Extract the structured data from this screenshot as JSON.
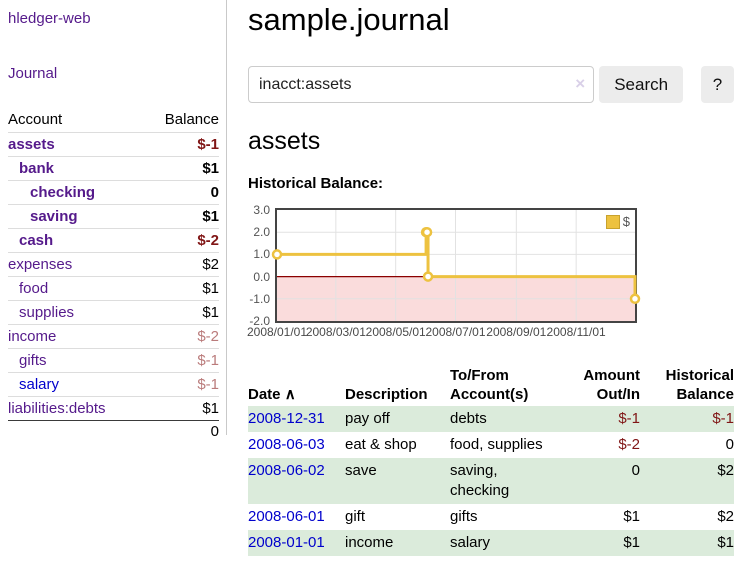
{
  "colors": {
    "link_purple": "#551A8B",
    "link_blue": "#0000CC",
    "neg_strong": "#801515",
    "neg_soft": "#BA7B7B",
    "row_green": "#DBEBDB",
    "chart_line": "#EDC240",
    "chart_negative_region": "#FADCDC",
    "chart_zero_line": "#8B0000",
    "button_bg": "#ECECEC"
  },
  "sidebar": {
    "app_title": "hledger-web",
    "nav": {
      "journal": "Journal"
    },
    "accounts_table": {
      "headers": {
        "account": "Account",
        "balance": "Balance"
      },
      "rows": [
        {
          "name": "assets",
          "depth": 1,
          "bold": true,
          "balance": "$-1",
          "neg": "strong"
        },
        {
          "name": "bank",
          "depth": 2,
          "bold": true,
          "balance": "$1"
        },
        {
          "name": "checking",
          "depth": 3,
          "bold": true,
          "balance": "0"
        },
        {
          "name": "saving",
          "depth": 3,
          "bold": true,
          "balance": "$1"
        },
        {
          "name": "cash",
          "depth": 2,
          "bold": true,
          "balance": "$-2",
          "neg": "strong"
        },
        {
          "name": "expenses",
          "depth": 1,
          "bold": false,
          "balance": "$2"
        },
        {
          "name": "food",
          "depth": 2,
          "bold": false,
          "balance": "$1"
        },
        {
          "name": "supplies",
          "depth": 2,
          "bold": false,
          "balance": "$1"
        },
        {
          "name": "income",
          "depth": 1,
          "bold": false,
          "balance": "$-2",
          "neg": "soft"
        },
        {
          "name": "gifts",
          "depth": 2,
          "bold": false,
          "balance": "$-1",
          "neg": "soft"
        },
        {
          "name": "salary",
          "depth": 2,
          "bold": false,
          "balance": "$-1",
          "neg": "soft",
          "unvisited": true
        },
        {
          "name": "liabilities:debts",
          "depth": 1,
          "bold": false,
          "balance": "$1",
          "last": true
        }
      ],
      "total": "0"
    }
  },
  "main": {
    "title": "sample.journal",
    "search": {
      "value": "inacct:assets",
      "clear_icon": "×",
      "button": "Search",
      "help_button": "?"
    },
    "section_title": "assets",
    "chart_label": "Historical Balance:"
  },
  "chart_data": {
    "type": "line",
    "title": "Historical Balance",
    "step": true,
    "series": [
      {
        "name": "$",
        "points": [
          [
            "2008-01-01",
            1
          ],
          [
            "2008-06-01",
            2
          ],
          [
            "2008-06-02",
            2
          ],
          [
            "2008-06-03",
            0
          ],
          [
            "2008-12-31",
            -1
          ]
        ]
      }
    ],
    "x_range": [
      "2008-01-01",
      "2008-12-31"
    ],
    "ylim": [
      -2.0,
      3.0
    ],
    "yticks": [
      {
        "v": 3,
        "label": "3.0"
      },
      {
        "v": 2,
        "label": "2.0"
      },
      {
        "v": 1,
        "label": "1.0"
      },
      {
        "v": 0,
        "label": "0.0"
      },
      {
        "v": -1,
        "label": "-1.0"
      },
      {
        "v": -2,
        "label": "-2.0"
      }
    ],
    "xticks": [
      {
        "date": "2008-01-01",
        "label": "2008/01/01"
      },
      {
        "date": "2008-03-01",
        "label": "2008/03/01"
      },
      {
        "date": "2008-05-01",
        "label": "2008/05/01"
      },
      {
        "date": "2008-07-01",
        "label": "2008/07/01"
      },
      {
        "date": "2008-09-01",
        "label": "2008/09/01"
      },
      {
        "date": "2008-11-01",
        "label": "2008/11/01"
      }
    ],
    "grid": true,
    "legend_position": "top-right",
    "negative_region_shaded": true
  },
  "register_table": {
    "headers": [
      "Date",
      "Description",
      "To/From Account(s)",
      "Amount Out/In",
      "Historical Balance"
    ],
    "sort_indicator": "∧",
    "rows": [
      {
        "date": "2008-12-31",
        "description": "pay off",
        "accounts": "debts",
        "amount": "$-1",
        "amount_negative": true,
        "balance": "$-1",
        "balance_negative": true
      },
      {
        "date": "2008-06-03",
        "description": "eat & shop",
        "accounts": "food, supplies",
        "amount": "$-2",
        "amount_negative": true,
        "balance": "0",
        "balance_negative": false
      },
      {
        "date": "2008-06-02",
        "description": "save",
        "accounts": "saving, checking",
        "amount": "0",
        "amount_negative": false,
        "balance": "$2",
        "balance_negative": false
      },
      {
        "date": "2008-06-01",
        "description": "gift",
        "accounts": "gifts",
        "amount": "$1",
        "amount_negative": false,
        "balance": "$2",
        "balance_negative": false
      },
      {
        "date": "2008-01-01",
        "description": "income",
        "accounts": "salary",
        "amount": "$1",
        "amount_negative": false,
        "balance": "$1",
        "balance_negative": false
      }
    ]
  }
}
